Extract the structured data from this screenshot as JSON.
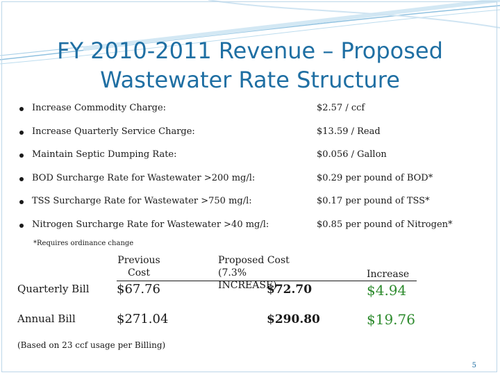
{
  "title": {
    "line1": "FY 2010-2011 Revenue – Proposed",
    "line2": "Wastewater Rate Structure"
  },
  "rates": [
    {
      "label": "Increase Commodity Charge:",
      "value": "$2.57 / ccf"
    },
    {
      "label": "Increase Quarterly Service Charge:",
      "value": "$13.59 / Read"
    },
    {
      "label": "Maintain Septic Dumping Rate:",
      "value": "$0.056 / Gallon"
    },
    {
      "label": "BOD Surcharge Rate for Wastewater >200 mg/l:",
      "value": "$0.29 per pound of BOD*"
    },
    {
      "label": "TSS Surcharge Rate for Wastewater >750 mg/l:",
      "value": "$0.17 per pound of TSS*"
    },
    {
      "label": "Nitrogen Surcharge Rate for Wastewater >40 mg/l:",
      "value": "$0.85 per pound of Nitrogen*"
    }
  ],
  "note": "*Requires ordinance change",
  "comparison": {
    "headers": {
      "previous_line1": "Previous",
      "previous_line2": "Cost",
      "proposed_line1": "Proposed Cost",
      "proposed_line2": "(7.3% INCREASE)",
      "increase": "Increase"
    },
    "rows": [
      {
        "label": "Quarterly Bill",
        "previous": "$67.76",
        "proposed": "$72.70",
        "increase": "$4.94"
      },
      {
        "label": "Annual Bill",
        "previous": "$271.04",
        "proposed": "$290.80",
        "increase": "$19.76"
      }
    ]
  },
  "footnote": "(Based on 23 ccf usage per Billing)",
  "page_number": "5",
  "colors": {
    "title": "#1f6fa3",
    "increase": "#2e8b2e",
    "decoration": "#8fc1e0"
  }
}
